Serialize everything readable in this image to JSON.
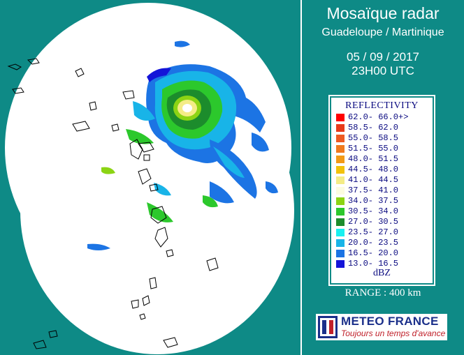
{
  "header": {
    "title": "Mosaïque radar",
    "subtitle": "Guadeloupe / Martinique",
    "date": "05 / 09 / 2017",
    "time": "23H00 UTC"
  },
  "legend": {
    "title": "REFLECTIVITY",
    "unit": "dBZ",
    "items": [
      {
        "label": "62.0- 66.0+>",
        "color": "#ff0000"
      },
      {
        "label": "58.5- 62.0",
        "color": "#e83a1a"
      },
      {
        "label": "55.0- 58.5",
        "color": "#ee5a22"
      },
      {
        "label": "51.5- 55.0",
        "color": "#f07a1e"
      },
      {
        "label": "48.0- 51.5",
        "color": "#f29a16"
      },
      {
        "label": "44.5- 48.0",
        "color": "#f2c20a"
      },
      {
        "label": "41.0- 44.5",
        "color": "#f4ec86"
      },
      {
        "label": "37.5- 41.0",
        "color": "#fcfce0"
      },
      {
        "label": "34.0- 37.5",
        "color": "#8cd414"
      },
      {
        "label": "30.5- 34.0",
        "color": "#2cc82c"
      },
      {
        "label": "27.0- 30.5",
        "color": "#1c8c2c"
      },
      {
        "label": "23.5- 27.0",
        "color": "#18f0f0"
      },
      {
        "label": "20.0- 23.5",
        "color": "#18b4e8"
      },
      {
        "label": "16.5- 20.0",
        "color": "#1c74e4"
      },
      {
        "label": "13.0- 16.5",
        "color": "#1414d8"
      }
    ]
  },
  "range": "RANGE : 400 km",
  "logo": {
    "name": "METEO FRANCE",
    "slogan": "Toujours un temps d'avance"
  },
  "colors": {
    "background": "#0e8a86",
    "coverage": "#ffffff",
    "legend_text": "#0a0a80"
  },
  "map": {
    "features": [
      "radar-coverage-guadeloupe",
      "radar-coverage-martinique",
      "hurricane-eye",
      "rain-bands",
      "island-outlines"
    ]
  }
}
